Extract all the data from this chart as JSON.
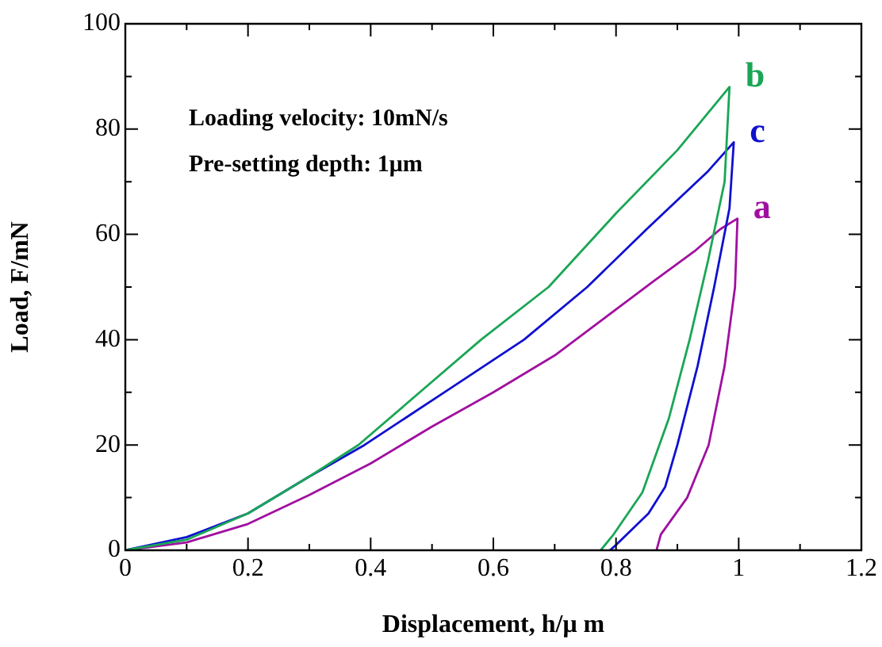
{
  "chart_data": {
    "type": "line",
    "xlabel": "Displacement, h/μ m",
    "ylabel": "Load, F/mN",
    "annotations": [
      "Loading velocity: 10mN/s",
      "Pre-setting depth: 1μm"
    ],
    "xlim": [
      0,
      1.2
    ],
    "ylim": [
      0,
      100
    ],
    "xticks": [
      0,
      {
        "value": 0.1,
        "label": null
      },
      0.2,
      {
        "value": 0.3,
        "label": null
      },
      0.4,
      {
        "value": 0.5,
        "label": null
      },
      0.6,
      {
        "value": 0.7,
        "label": null
      },
      0.8,
      {
        "value": 0.9,
        "label": null
      },
      1,
      {
        "value": 1.1,
        "label": null
      },
      1.2
    ],
    "yticks": [
      0,
      {
        "value": 10,
        "label": null
      },
      20,
      {
        "value": 30,
        "label": null
      },
      40,
      {
        "value": 50,
        "label": null
      },
      60,
      {
        "value": 70,
        "label": null
      },
      80,
      {
        "value": 90,
        "label": null
      },
      100
    ],
    "grid": false,
    "legend": false,
    "marker": "none",
    "line_style": "solid",
    "series": [
      {
        "name": "b",
        "color": "#1aa655",
        "x": [
          0,
          0.1,
          0.2,
          0.3,
          0.38,
          0.48,
          0.58,
          0.69,
          0.8,
          0.9,
          0.985,
          0.977,
          0.95,
          0.92,
          0.886,
          0.843,
          0.796,
          0.775
        ],
        "values": [
          0,
          2,
          7,
          14,
          20,
          30,
          40,
          50,
          64,
          76,
          88,
          70,
          55,
          40,
          25,
          11,
          3,
          0
        ]
      },
      {
        "name": "c",
        "color": "#1010d0",
        "x": [
          0,
          0.1,
          0.2,
          0.3,
          0.39,
          0.52,
          0.65,
          0.753,
          0.85,
          0.95,
          0.992,
          0.985,
          0.96,
          0.933,
          0.9,
          0.88,
          0.853,
          0.8,
          0.79
        ],
        "values": [
          0,
          2.5,
          7,
          14,
          20,
          30,
          40,
          50,
          61,
          72,
          77.5,
          65,
          50,
          35,
          20,
          12,
          7,
          1,
          0
        ]
      },
      {
        "name": "a",
        "color": "#a010a0",
        "x": [
          0,
          0.1,
          0.2,
          0.3,
          0.4,
          0.5,
          0.6,
          0.7,
          0.78,
          0.86,
          0.93,
          0.97,
          0.998,
          0.994,
          0.977,
          0.951,
          0.916,
          0.873,
          0.866
        ],
        "values": [
          0,
          1.5,
          5,
          10.5,
          16.5,
          23.5,
          30,
          37,
          44,
          51,
          57,
          61,
          63,
          50,
          35,
          20,
          10,
          3,
          0
        ]
      }
    ]
  }
}
